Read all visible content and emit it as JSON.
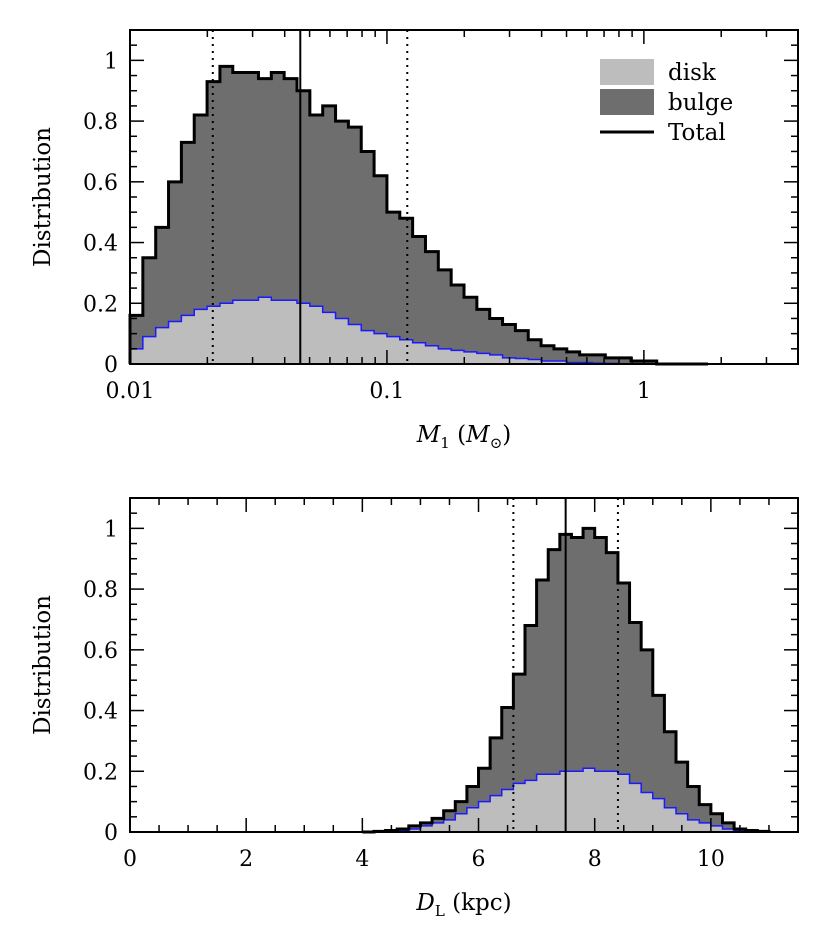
{
  "colors": {
    "disk": "#bdbdbd",
    "bulge": "#6e6e6e",
    "total_line": "#000000",
    "disk_outline": "#1a1aff",
    "background": "#ffffff"
  },
  "legend": {
    "disk": "disk",
    "bulge": "bulge",
    "total": "Total"
  },
  "chart_data": [
    {
      "type": "area",
      "ylabel": "Distribution",
      "xlabel_parts": {
        "var": "M",
        "var_sub": "1",
        "unit_open": "(",
        "unit_var": "M",
        "unit_sub": "⊙",
        "unit_close": ")"
      },
      "x_scale": "log",
      "xlim": [
        0.01,
        3.98
      ],
      "ylim": [
        0,
        1.1
      ],
      "x_ticks": [
        0.01,
        0.1,
        1
      ],
      "x_tick_labels": [
        "0.01",
        "0.1",
        "1"
      ],
      "y_ticks": [
        0,
        0.2,
        0.4,
        0.6,
        0.8,
        1
      ],
      "y_tick_labels": [
        "0",
        "0.2",
        "0.4",
        "0.6",
        "0.8",
        "1"
      ],
      "bin_edges_log10": [
        -2.0,
        -1.95,
        -1.9,
        -1.85,
        -1.8,
        -1.75,
        -1.7,
        -1.65,
        -1.6,
        -1.55,
        -1.5,
        -1.45,
        -1.4,
        -1.35,
        -1.3,
        -1.25,
        -1.2,
        -1.15,
        -1.1,
        -1.05,
        -1.0,
        -0.95,
        -0.9,
        -0.85,
        -0.8,
        -0.75,
        -0.7,
        -0.65,
        -0.6,
        -0.55,
        -0.5,
        -0.45,
        -0.4,
        -0.35,
        -0.3,
        -0.25,
        -0.2,
        -0.15,
        -0.1,
        -0.05,
        0.0,
        0.05,
        0.1,
        0.15,
        0.2,
        0.25
      ],
      "series": [
        {
          "name": "Total",
          "values": [
            0.16,
            0.35,
            0.45,
            0.6,
            0.73,
            0.82,
            0.93,
            0.98,
            0.96,
            0.96,
            0.94,
            0.96,
            0.94,
            0.9,
            0.82,
            0.85,
            0.8,
            0.78,
            0.7,
            0.62,
            0.5,
            0.48,
            0.42,
            0.37,
            0.31,
            0.26,
            0.22,
            0.18,
            0.15,
            0.13,
            0.11,
            0.08,
            0.06,
            0.05,
            0.04,
            0.03,
            0.03,
            0.02,
            0.02,
            0.01,
            0.01,
            0.0,
            0.0,
            0.0,
            0.0
          ]
        },
        {
          "name": "disk",
          "values": [
            0.05,
            0.09,
            0.12,
            0.14,
            0.16,
            0.18,
            0.19,
            0.2,
            0.21,
            0.21,
            0.22,
            0.21,
            0.21,
            0.2,
            0.19,
            0.17,
            0.15,
            0.13,
            0.11,
            0.1,
            0.09,
            0.08,
            0.07,
            0.06,
            0.05,
            0.045,
            0.04,
            0.035,
            0.03,
            0.02,
            0.018,
            0.015,
            0.01,
            0.01,
            0.005,
            0.005,
            0.003,
            0.002,
            0.001,
            0.0,
            0.0,
            0.0,
            0.0,
            0.0,
            0.0
          ]
        }
      ],
      "vlines": {
        "median": 0.046,
        "lower": 0.021,
        "upper": 0.12
      }
    },
    {
      "type": "area",
      "ylabel": "Distribution",
      "xlabel_parts": {
        "var": "D",
        "var_sub": "L",
        "unit": "(kpc)"
      },
      "x_scale": "linear",
      "xlim": [
        0,
        11.5
      ],
      "ylim": [
        0,
        1.1
      ],
      "x_ticks": [
        0,
        2,
        4,
        6,
        8,
        10
      ],
      "x_tick_labels": [
        "0",
        "2",
        "4",
        "6",
        "8",
        "10"
      ],
      "y_ticks": [
        0,
        0.2,
        0.4,
        0.6,
        0.8,
        1
      ],
      "y_tick_labels": [
        "0",
        "0.2",
        "0.4",
        "0.6",
        "0.8",
        "1"
      ],
      "bin_start": 4.0,
      "bin_width": 0.2,
      "series": [
        {
          "name": "Total",
          "values": [
            0.0,
            0.002,
            0.005,
            0.01,
            0.02,
            0.03,
            0.045,
            0.07,
            0.1,
            0.15,
            0.21,
            0.31,
            0.41,
            0.52,
            0.68,
            0.83,
            0.93,
            0.98,
            0.97,
            1.0,
            0.97,
            0.92,
            0.82,
            0.69,
            0.6,
            0.45,
            0.33,
            0.23,
            0.15,
            0.09,
            0.06,
            0.03,
            0.01,
            0.005,
            0.002
          ]
        },
        {
          "name": "disk",
          "values": [
            0.0,
            0.001,
            0.003,
            0.005,
            0.01,
            0.02,
            0.03,
            0.04,
            0.06,
            0.08,
            0.1,
            0.12,
            0.14,
            0.16,
            0.17,
            0.19,
            0.19,
            0.2,
            0.2,
            0.21,
            0.2,
            0.2,
            0.19,
            0.16,
            0.13,
            0.11,
            0.08,
            0.06,
            0.04,
            0.03,
            0.02,
            0.01,
            0.005,
            0.002,
            0.001
          ]
        }
      ],
      "vlines": {
        "median": 7.5,
        "lower": 6.6,
        "upper": 8.4
      }
    }
  ]
}
